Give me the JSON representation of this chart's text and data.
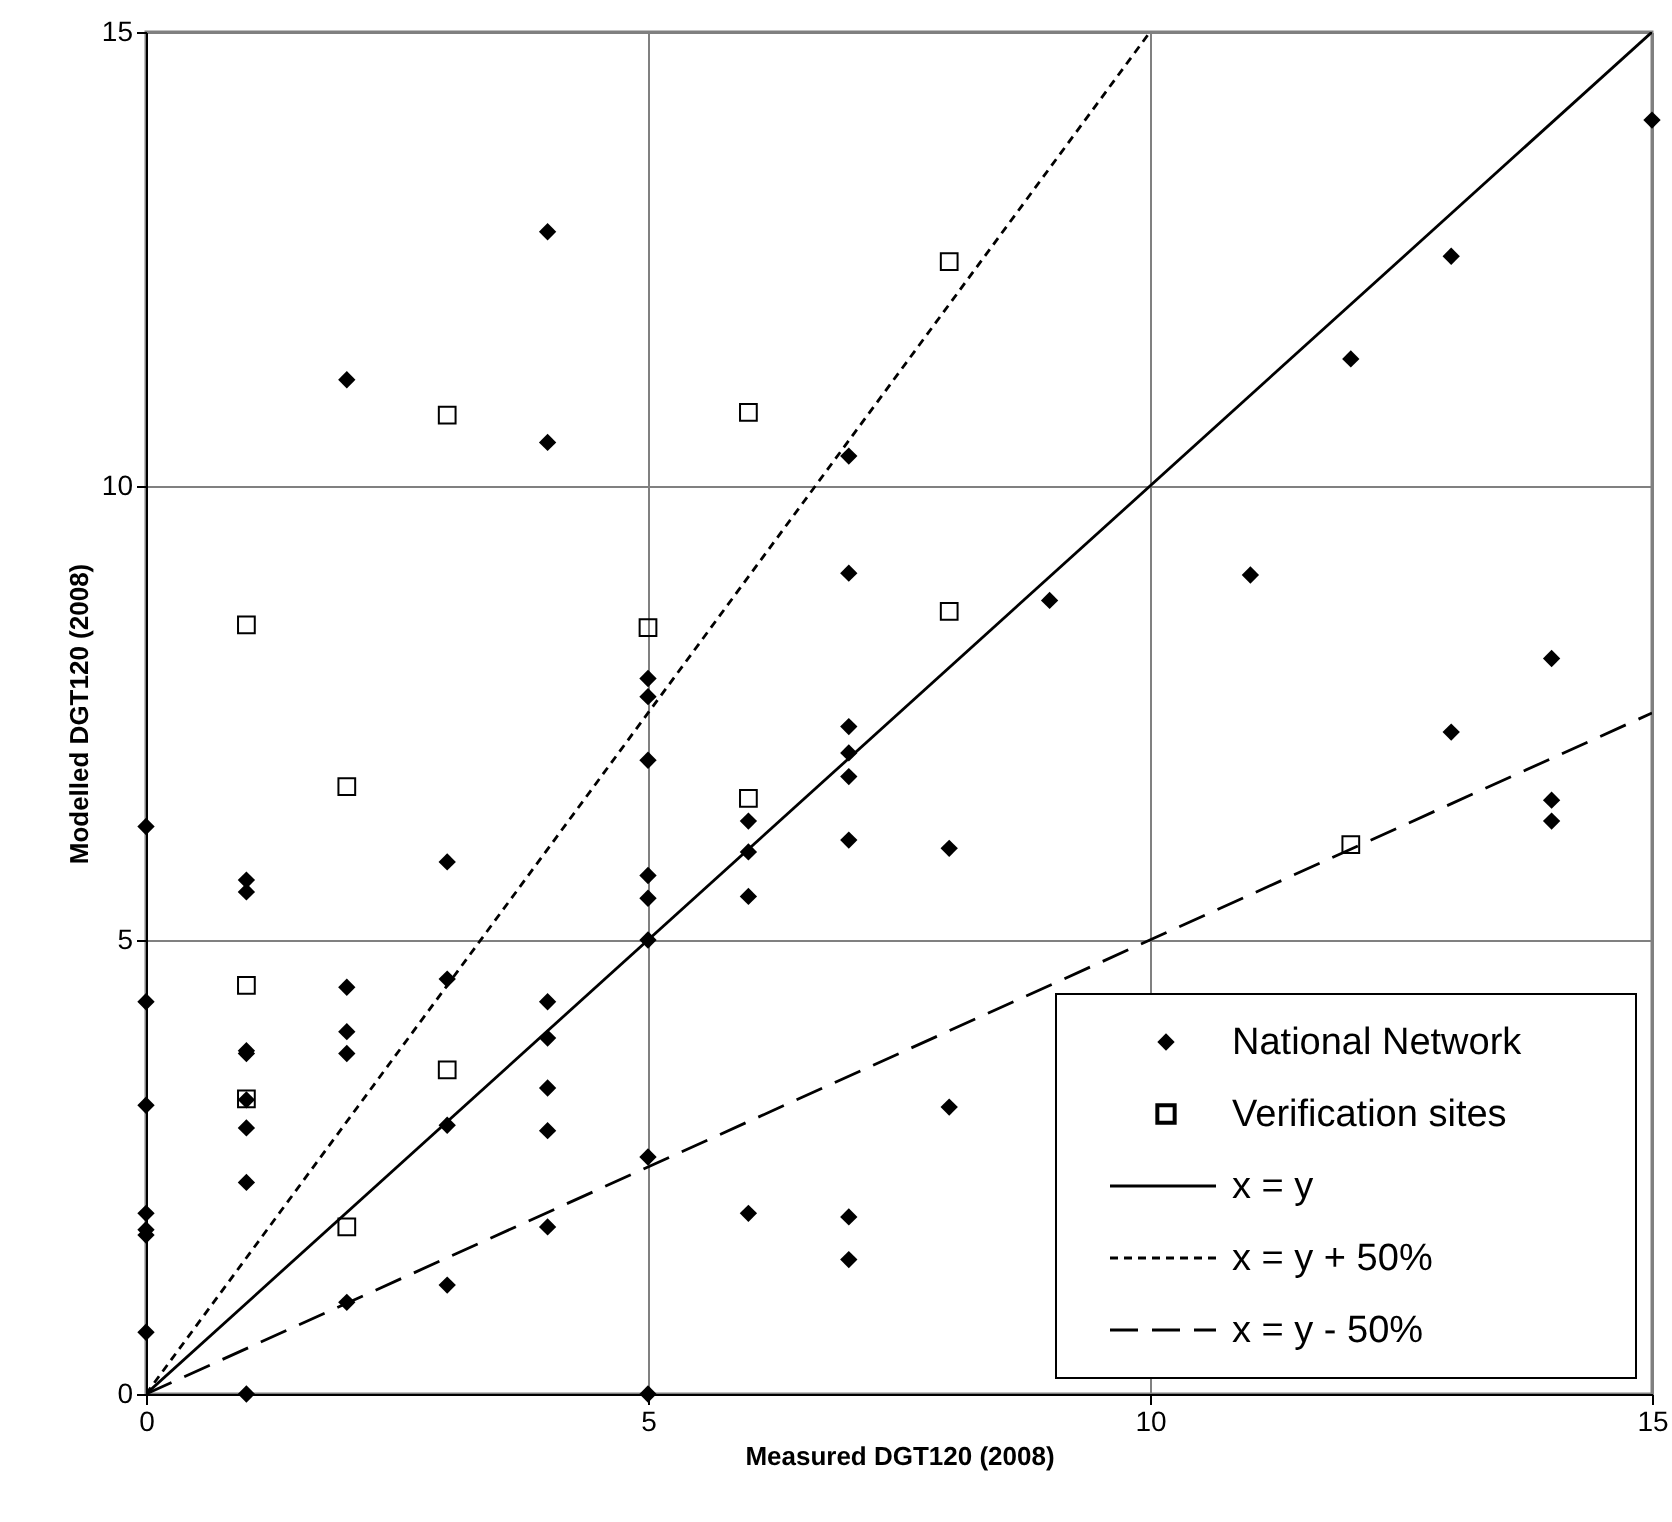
{
  "chart_data": {
    "type": "scatter",
    "xlabel": "Measured DGT120 (2008)",
    "ylabel": "Modelled DGT120 (2008)",
    "xlim": [
      0,
      15
    ],
    "ylim": [
      0,
      15
    ],
    "xticks": [
      0,
      5,
      10,
      15
    ],
    "yticks": [
      0,
      5,
      10,
      15
    ],
    "grid": true,
    "legend": "bottom right",
    "series": [
      {
        "name": "National Network",
        "type": "scatter",
        "marker": "diamond",
        "color": "#000000",
        "x": [
          0,
          0,
          0,
          0,
          0,
          0,
          0,
          1,
          1,
          1,
          1,
          1,
          1,
          1,
          1,
          2,
          2,
          2,
          2,
          2,
          3,
          3,
          3,
          3,
          4,
          4,
          4,
          4,
          4,
          4,
          4,
          5,
          5,
          5,
          5,
          5,
          5,
          5,
          5,
          6,
          6,
          6,
          6,
          7,
          7,
          7,
          7,
          7,
          7,
          7,
          7,
          8,
          8,
          9,
          11,
          12,
          13,
          13,
          14,
          14,
          14,
          15
        ],
        "values": [
          6.25,
          4.32,
          3.18,
          1.99,
          1.81,
          1.75,
          0.68,
          0,
          5.66,
          5.53,
          3.78,
          3.75,
          3.24,
          2.93,
          2.33,
          1.01,
          11.17,
          4.48,
          3.99,
          3.75,
          1.2,
          5.86,
          4.57,
          2.96,
          2.9,
          12.8,
          10.48,
          4.32,
          3.92,
          3.37,
          1.84,
          0,
          7.88,
          7.68,
          6.98,
          5.71,
          5.46,
          5.0,
          2.61,
          1.99,
          6.31,
          5.97,
          5.48,
          1.95,
          10.33,
          9.04,
          7.35,
          7.06,
          6.8,
          6.1,
          1.48,
          6.01,
          3.16,
          8.74,
          9.02,
          11.4,
          12.53,
          7.29,
          8.1,
          6.54,
          6.31,
          14.03
        ]
      },
      {
        "name": "Verification sites",
        "type": "scatter",
        "marker": "square",
        "color": "#000000",
        "x": [
          1,
          1,
          1,
          2,
          2,
          3,
          3,
          5,
          6,
          6,
          8,
          8,
          12
        ],
        "values": [
          8.47,
          4.5,
          3.25,
          6.69,
          1.84,
          10.78,
          3.57,
          8.44,
          10.81,
          6.56,
          12.47,
          8.62,
          6.05
        ]
      },
      {
        "name": "x = y",
        "type": "line",
        "line_style": "solid",
        "color": "#000000",
        "x": [
          0,
          15
        ],
        "values": [
          0,
          15
        ]
      },
      {
        "name": "x = y + 50%",
        "type": "line",
        "line_style": "dotted",
        "color": "#000000",
        "x": [
          0,
          10
        ],
        "values": [
          0,
          15
        ]
      },
      {
        "name": "x = y - 50%",
        "type": "line",
        "line_style": "dashed",
        "color": "#000000",
        "x": [
          0,
          15
        ],
        "values": [
          0,
          7.5
        ]
      }
    ]
  }
}
